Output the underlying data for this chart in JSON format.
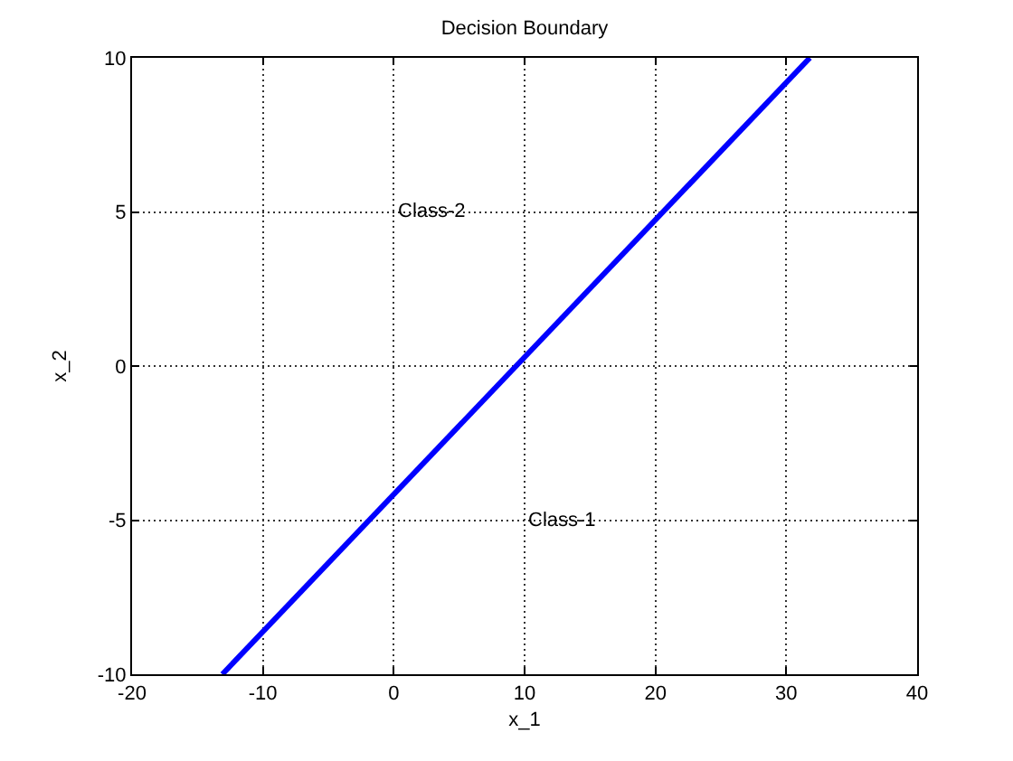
{
  "chart_data": {
    "type": "line",
    "title": "Decision Boundary",
    "xlabel": "x_1",
    "ylabel": "x_2",
    "x": [
      -13.1,
      31.8
    ],
    "series": [
      {
        "color": "#0000ff",
        "values": [
          -10,
          10
        ]
      }
    ],
    "xlim": [
      -20,
      40
    ],
    "xticks": [
      -20,
      -10,
      0,
      10,
      20,
      30,
      40
    ],
    "ylim": [
      -10,
      10
    ],
    "yticks": [
      -10,
      -5,
      0,
      5,
      10
    ],
    "grid": true,
    "line_style": "solid",
    "annotations": [
      "Class-2",
      "Class-1"
    ]
  }
}
